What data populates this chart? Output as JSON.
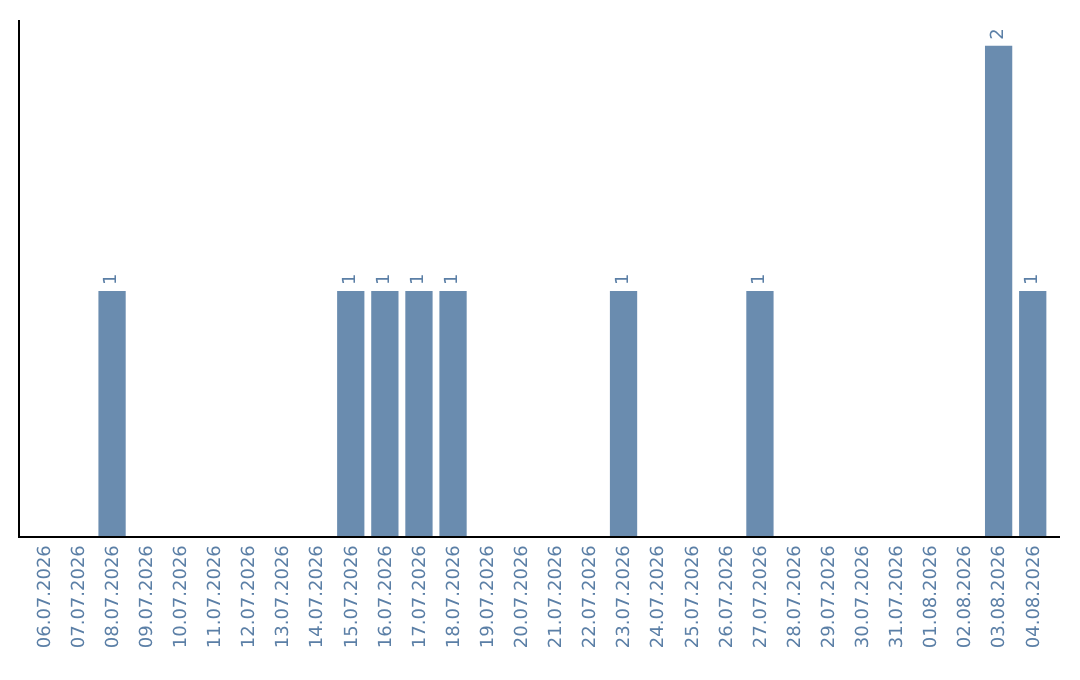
{
  "chart_data": {
    "type": "bar",
    "categories": [
      "06.07.2026",
      "07.07.2026",
      "08.07.2026",
      "09.07.2026",
      "10.07.2026",
      "11.07.2026",
      "12.07.2026",
      "13.07.2026",
      "14.07.2026",
      "15.07.2026",
      "16.07.2026",
      "17.07.2026",
      "18.07.2026",
      "19.07.2026",
      "20.07.2026",
      "21.07.2026",
      "22.07.2026",
      "23.07.2026",
      "24.07.2026",
      "25.07.2026",
      "26.07.2026",
      "27.07.2026",
      "28.07.2026",
      "29.07.2026",
      "30.07.2026",
      "31.07.2026",
      "01.08.2026",
      "02.08.2026",
      "03.08.2026",
      "04.08.2026"
    ],
    "values": [
      0,
      0,
      1,
      0,
      0,
      0,
      0,
      0,
      0,
      1,
      1,
      1,
      1,
      0,
      0,
      0,
      0,
      1,
      0,
      0,
      0,
      1,
      0,
      0,
      0,
      0,
      0,
      0,
      2,
      1
    ],
    "value_labels": [
      null,
      null,
      "1",
      null,
      null,
      null,
      null,
      null,
      null,
      "1",
      "1",
      "1",
      "1",
      null,
      null,
      null,
      null,
      "1",
      null,
      null,
      null,
      "1",
      null,
      null,
      null,
      null,
      null,
      null,
      "2",
      "1"
    ],
    "color": "#6a8caf",
    "tick_labels": "x"
  }
}
